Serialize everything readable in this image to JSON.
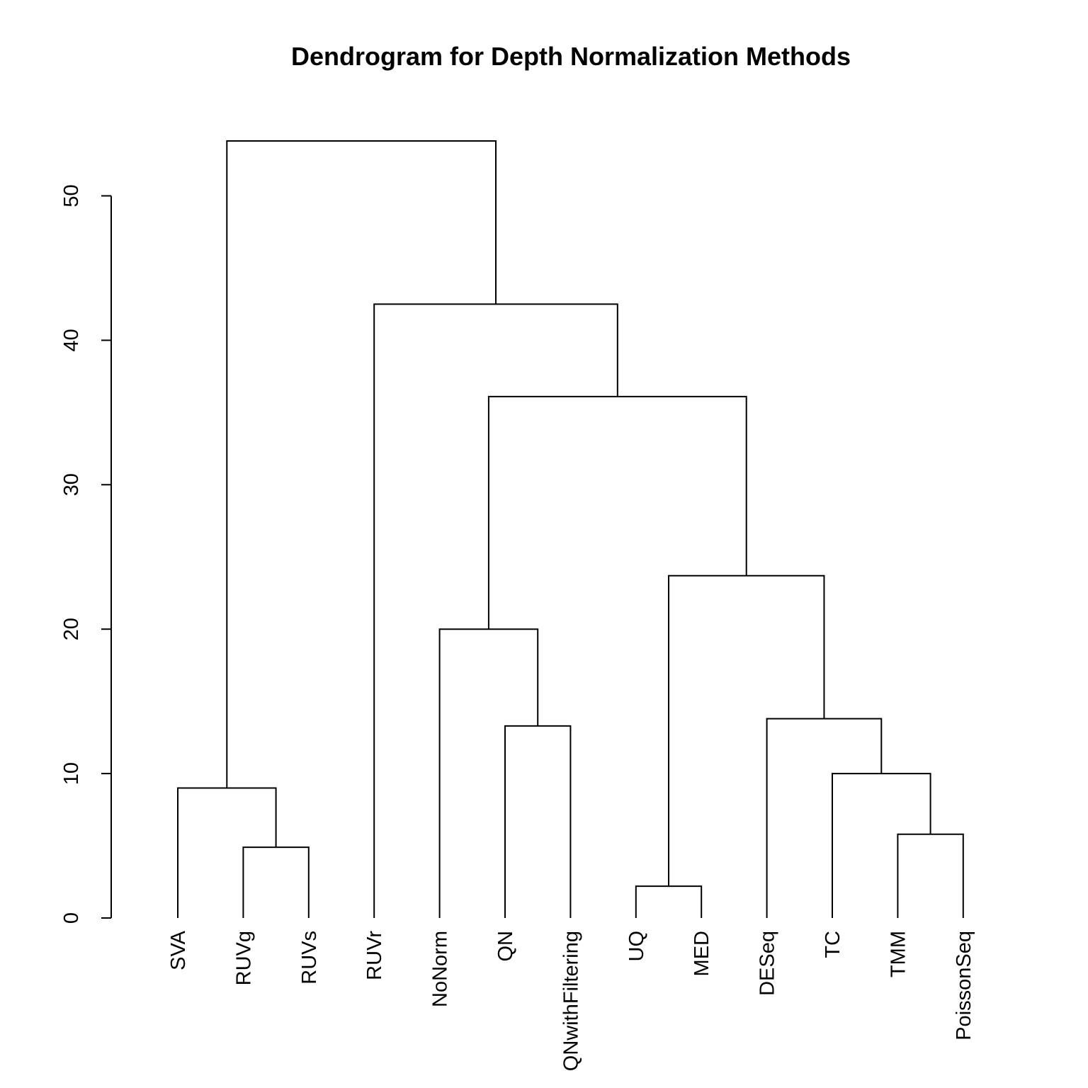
{
  "chart_data": {
    "type": "dendrogram",
    "title": "Dendrogram for Depth Normalization Methods",
    "xlabel": "",
    "ylabel": "",
    "ylim": [
      0,
      50
    ],
    "yticks": [
      0,
      10,
      20,
      30,
      40,
      50
    ],
    "grid": false,
    "leaves": [
      "SVA",
      "RUVg",
      "RUVs",
      "RUVr",
      "NoNorm",
      "QN",
      "QNwithFiltering",
      "UQ",
      "MED",
      "DESeq",
      "TC",
      "TMM",
      "PoissonSeq"
    ],
    "merges": [
      {
        "id": "m1",
        "left": "RUVg",
        "right": "RUVs",
        "height": 4.9
      },
      {
        "id": "m2",
        "left": "SVA",
        "right": "m1",
        "height": 9.0
      },
      {
        "id": "m3",
        "left": "QN",
        "right": "QNwithFiltering",
        "height": 13.3
      },
      {
        "id": "m4",
        "left": "NoNorm",
        "right": "m3",
        "height": 20.0
      },
      {
        "id": "m5",
        "left": "UQ",
        "right": "MED",
        "height": 2.2
      },
      {
        "id": "m6",
        "left": "TMM",
        "right": "PoissonSeq",
        "height": 5.8
      },
      {
        "id": "m7",
        "left": "TC",
        "right": "m6",
        "height": 10.0
      },
      {
        "id": "m8",
        "left": "DESeq",
        "right": "m7",
        "height": 13.8
      },
      {
        "id": "m9",
        "left": "m5",
        "right": "m8",
        "height": 23.7
      },
      {
        "id": "m10",
        "left": "m4",
        "right": "m9",
        "height": 36.1
      },
      {
        "id": "m11",
        "left": "RUVr",
        "right": "m10",
        "height": 42.5
      },
      {
        "id": "m12",
        "left": "m2",
        "right": "m11",
        "height": 53.8
      }
    ]
  }
}
